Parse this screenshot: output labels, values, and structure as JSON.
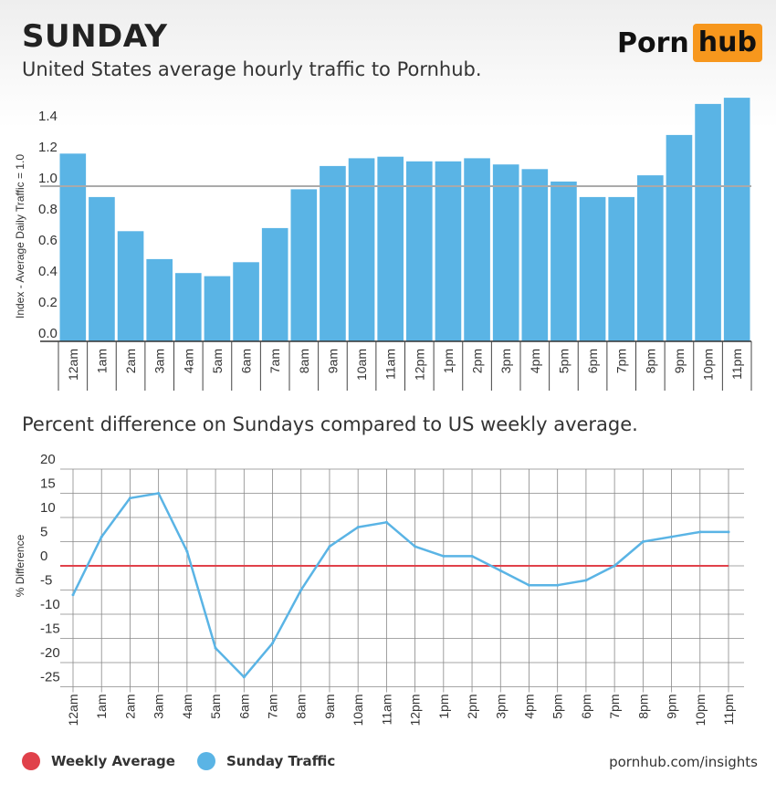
{
  "header": {
    "title": "SUNDAY",
    "subtitle": "United States average hourly traffic to Pornhub.",
    "logo_left": "Porn",
    "logo_right": "hub"
  },
  "section2": {
    "title": "Percent difference on Sundays compared to US weekly average."
  },
  "legend": {
    "items": [
      {
        "label": "Weekly Average",
        "color": "#e0414a"
      },
      {
        "label": "Sunday Traffic",
        "color": "#5ab4e5"
      }
    ]
  },
  "footer": {
    "source": "pornhub.com/insights"
  },
  "colors": {
    "bar": "#5ab4e5",
    "reference": "#e0414a",
    "avg_line": "#aaaaaa",
    "logo_accent": "#f7971d"
  },
  "chart_data": [
    {
      "type": "bar",
      "ylabel": "Index - Average Daily Traffic = 1.0",
      "ylim": [
        0,
        1.5
      ],
      "yticks": [
        "0.0",
        "0.2",
        "0.4",
        "0.6",
        "0.8",
        "1.0",
        "1.2",
        "1.4"
      ],
      "reference_line": 1.0,
      "categories": [
        "12am",
        "1am",
        "2am",
        "3am",
        "4am",
        "5am",
        "6am",
        "7am",
        "8am",
        "9am",
        "10am",
        "11am",
        "12pm",
        "1pm",
        "2pm",
        "3pm",
        "4pm",
        "5pm",
        "6pm",
        "7pm",
        "8pm",
        "9pm",
        "10pm",
        "11pm"
      ],
      "values": [
        1.21,
        0.93,
        0.71,
        0.53,
        0.44,
        0.42,
        0.51,
        0.73,
        0.98,
        1.13,
        1.18,
        1.19,
        1.16,
        1.16,
        1.18,
        1.14,
        1.11,
        1.03,
        0.93,
        0.93,
        1.07,
        1.33,
        1.53,
        1.57
      ],
      "grid": false
    },
    {
      "type": "line",
      "ylabel": "% Difference",
      "ylim": [
        -25,
        20
      ],
      "yticks": [
        "20",
        "15",
        "10",
        "5",
        "0",
        "-5",
        "-10",
        "-15",
        "-20",
        "-25"
      ],
      "reference_line": 0,
      "categories": [
        "12am",
        "1am",
        "2am",
        "3am",
        "4am",
        "5am",
        "6am",
        "7am",
        "8am",
        "9am",
        "10am",
        "11am",
        "12pm",
        "1pm",
        "2pm",
        "3pm",
        "4pm",
        "5pm",
        "6pm",
        "7pm",
        "8pm",
        "9pm",
        "10pm",
        "11pm"
      ],
      "series": [
        {
          "name": "Sunday Traffic",
          "values": [
            -6,
            6,
            14,
            15,
            3,
            -17,
            -23,
            -16,
            -5,
            4,
            8,
            9,
            4,
            2,
            2,
            -1,
            -4,
            -4,
            -3,
            0,
            5,
            6,
            7,
            7
          ]
        }
      ],
      "grid": true
    }
  ]
}
